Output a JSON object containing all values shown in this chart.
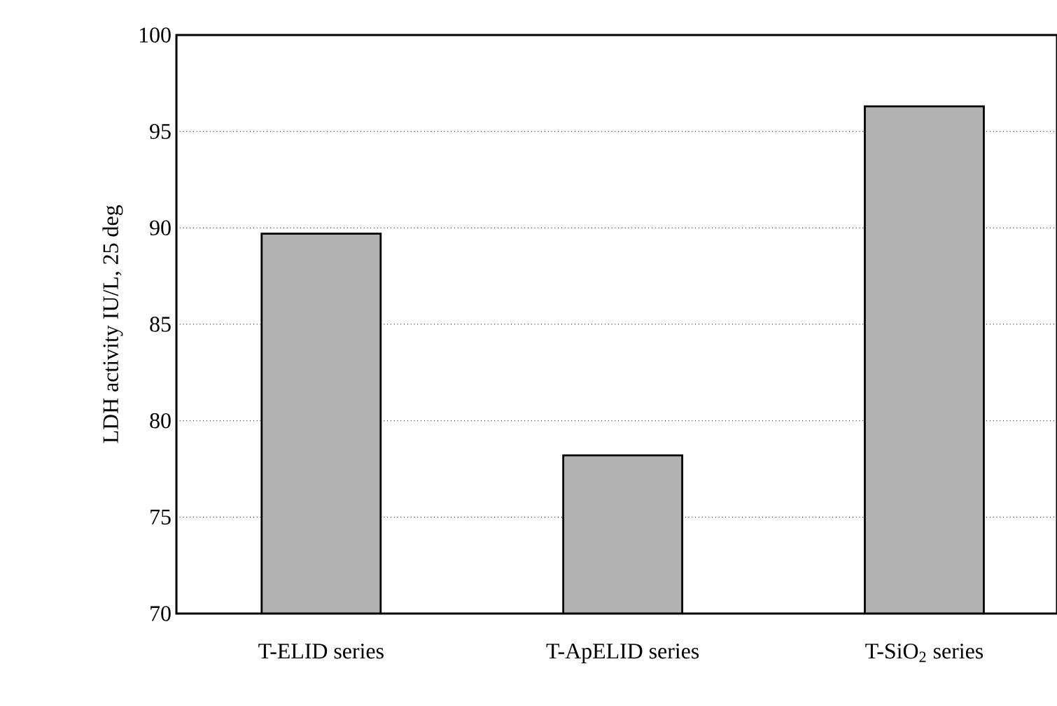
{
  "chart_data": {
    "type": "bar",
    "ylabel": "LDH activity IU/L, 25 deg",
    "categories": [
      "T-ELID series",
      "T-ApELID series",
      "T-SiO$_{2}$ series"
    ],
    "values": [
      89.7,
      78.2,
      96.3
    ],
    "color": "#b2b2b2",
    "ylim": [
      70,
      100
    ],
    "yticks": [
      70,
      75,
      80,
      85,
      90,
      95,
      100
    ],
    "grid": "y"
  }
}
